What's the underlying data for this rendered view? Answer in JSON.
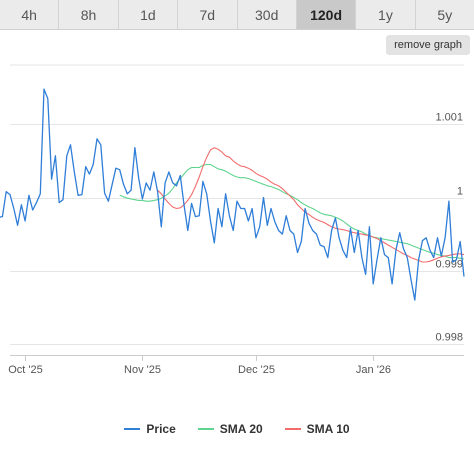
{
  "tabs": [
    {
      "label": "4h",
      "active": false
    },
    {
      "label": "8h",
      "active": false
    },
    {
      "label": "1d",
      "active": false
    },
    {
      "label": "7d",
      "active": false
    },
    {
      "label": "30d",
      "active": false
    },
    {
      "label": "120d",
      "active": true
    },
    {
      "label": "1y",
      "active": false
    },
    {
      "label": "5y",
      "active": false
    }
  ],
  "remove_graph_label": "remove graph",
  "colors": {
    "price": "#2f7ed8",
    "sma20": "#5fd48e",
    "sma10": "#f36c6c",
    "grid": "#e6e6e6",
    "active_tab": "#c9c9c9"
  },
  "chart_data": {
    "type": "line",
    "y_ticks": [
      "0.998",
      "0.999",
      "1",
      "1.001"
    ],
    "y_tick_values": [
      0.998,
      0.999,
      1.0,
      1.001
    ],
    "ylim": [
      0.99785,
      1.00185
    ],
    "x_ticks": [
      "Oct '25",
      "Nov '25",
      "Dec '25",
      "Jan '26"
    ],
    "x_tick_day_index": [
      4,
      35,
      65,
      96
    ],
    "x_range_days": [
      0,
      120
    ],
    "legend_position": "bottom",
    "grid": true,
    "series": [
      {
        "name": "Price",
        "values": [
          1.00018,
          0.99965,
          1.00022,
          1.00003,
          1.00028,
          0.99973,
          0.99974,
          1.00008,
          1.00004,
          0.99985,
          0.99962,
          0.9999,
          0.99968,
          1.00003,
          0.99983,
          0.99993,
          1.00005,
          1.00148,
          1.00135,
          1.00025,
          1.00057,
          0.99993,
          0.99997,
          1.00057,
          1.00072,
          1.00035,
          1.00003,
          1.00004,
          1.00042,
          1.00032,
          1.00045,
          1.0008,
          1.00072,
          1.00006,
          0.99995,
          1.00018,
          1.0004,
          1.00038,
          1.00018,
          1.00005,
          1.0001,
          1.00068,
          1.00027,
          0.99998,
          1.0002,
          1.0001,
          1.00035,
          1.00008,
          0.9996,
          1.0002,
          1.00035,
          1.0002,
          1.00016,
          1.0003,
          0.9999,
          0.99955,
          0.99992,
          0.99974,
          0.99975,
          1.00022,
          1.00005,
          0.99968,
          0.99938,
          0.99985,
          0.9996,
          1.00005,
          0.99975,
          0.99955,
          0.99995,
          0.99985,
          0.99985,
          0.99968,
          0.99985,
          0.99945,
          0.9996,
          1.0,
          0.99962,
          0.99985,
          0.99967,
          0.99955,
          0.9995,
          0.99975,
          0.99955,
          0.9995,
          0.99925,
          0.9994,
          0.99985,
          0.99965,
          0.99955,
          0.9995,
          0.99935,
          0.99933,
          0.99918,
          0.99955,
          0.99972,
          0.99945,
          0.99928,
          0.99918,
          0.99958,
          0.99925,
          0.99955,
          0.99918,
          0.99895,
          0.9996,
          0.99882,
          0.99915,
          0.99945,
          0.99922,
          0.99918,
          0.99882,
          0.99928,
          0.99952,
          0.9993,
          0.99918,
          0.99888,
          0.9986,
          0.99915,
          0.99941,
          0.99945,
          0.99928,
          0.99918,
          0.99945,
          0.9992,
          0.99945,
          0.99995,
          0.99912,
          0.99915,
          0.9994,
          0.99892
        ]
      },
      {
        "name": "SMA 20",
        "values": [
          1.00003,
          1.00001,
          0.99999,
          0.99998,
          0.99997,
          0.99996,
          0.99996,
          0.99995,
          0.99995,
          0.99996,
          0.99997,
          0.99999,
          1.00002,
          1.00006,
          1.00012,
          1.0002,
          1.00026,
          1.00032,
          1.00038,
          1.00041,
          1.00041,
          1.00041,
          1.00044,
          1.00045,
          1.00045,
          1.00042,
          1.00039,
          1.00038,
          1.00036,
          1.00033,
          1.0003,
          1.00028,
          1.00027,
          1.00027,
          1.00026,
          1.00024,
          1.00022,
          1.0002,
          1.00018,
          1.00016,
          1.00015,
          1.00013,
          1.00011,
          1.00008,
          1.00005,
          1.00003,
          1.0,
          0.99997,
          0.99993,
          0.9999,
          0.99987,
          0.99985,
          0.99982,
          0.99979,
          0.99977,
          0.99976,
          0.99975,
          0.99973,
          0.99971,
          0.99968,
          0.99964,
          0.9996,
          0.99957,
          0.99955,
          0.99953,
          0.9995,
          0.99948,
          0.99946,
          0.99945,
          0.99944,
          0.99943,
          0.99942,
          0.99941,
          0.9994,
          0.99939,
          0.99938,
          0.99937,
          0.99935,
          0.99933,
          0.99931,
          0.99929,
          0.99927,
          0.99925,
          0.99924,
          0.99922,
          0.99921,
          0.9992,
          0.99918,
          0.99918,
          0.99918,
          0.99917,
          0.99916
        ]
      },
      {
        "name": "SMA 10",
        "values": [
          1.0001,
          1.00005,
          0.99998,
          0.99992,
          0.99987,
          0.99985,
          0.99986,
          0.9999,
          0.99996,
          1.00004,
          1.00015,
          1.00028,
          1.00042,
          1.00055,
          1.00065,
          1.00068,
          1.00066,
          1.00062,
          1.00057,
          1.00055,
          1.0005,
          1.00046,
          1.00043,
          1.00042,
          1.0004,
          1.00037,
          1.00033,
          1.0003,
          1.00028,
          1.00025,
          1.00021,
          1.00018,
          1.00016,
          1.00012,
          1.00007,
          1.00002,
          0.99997,
          0.9999,
          0.99985,
          0.9998,
          0.99977,
          0.99973,
          0.9997,
          0.99968,
          0.99966,
          0.99963,
          0.9996,
          0.99958,
          0.99957,
          0.99956,
          0.99955,
          0.99953,
          0.99952,
          0.99951,
          0.9995,
          0.99949,
          0.99948,
          0.99946,
          0.99944,
          0.99941,
          0.99938,
          0.99935,
          0.99932,
          0.99929,
          0.99926,
          0.99923,
          0.99921,
          0.99918,
          0.99916,
          0.99914,
          0.99912,
          0.99912,
          0.99913,
          0.99915,
          0.99917,
          0.99919,
          0.9992,
          0.99921,
          0.99922,
          0.99923,
          0.99923,
          0.99922
        ]
      }
    ]
  }
}
